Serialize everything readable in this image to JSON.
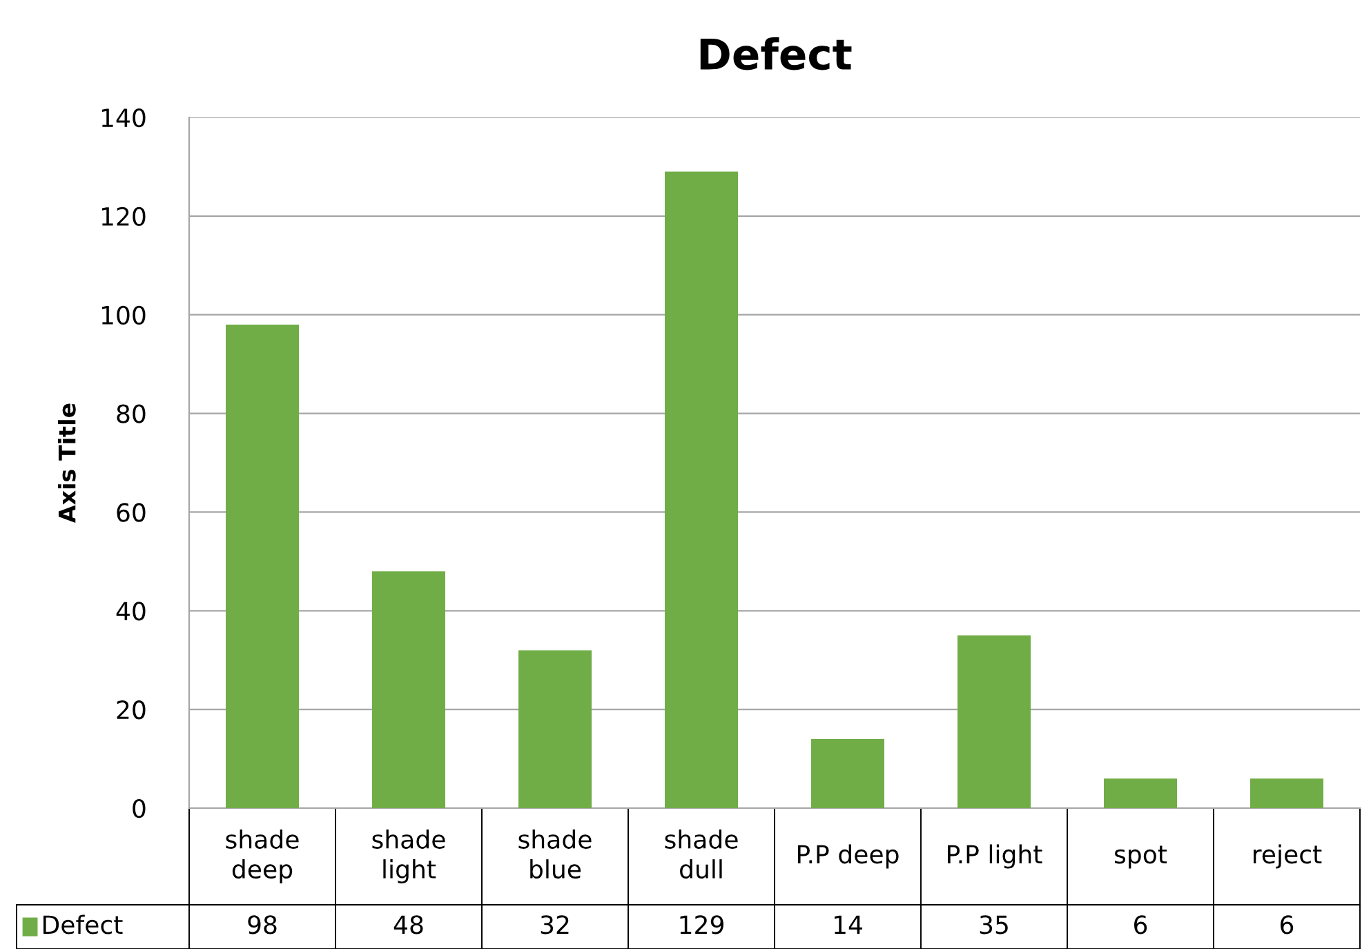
{
  "chart_data": {
    "type": "bar",
    "title": "Defect",
    "ylabel": "Axis Title",
    "categories": [
      "shade deep",
      "shade light",
      "shade blue",
      "shade dull",
      "P.P deep",
      "P.P light",
      "spot",
      "reject"
    ],
    "series": [
      {
        "name": "Defect",
        "color": "#70ad47",
        "values": [
          98,
          48,
          32,
          129,
          14,
          35,
          6,
          6
        ]
      }
    ],
    "ylim": [
      0,
      140
    ],
    "yticks": [
      0,
      20,
      40,
      60,
      80,
      100,
      120,
      140
    ],
    "grid": "y",
    "legend": "bottom",
    "data_labels": true
  }
}
